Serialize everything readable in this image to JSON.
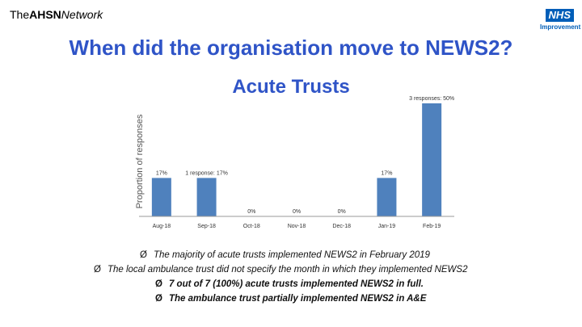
{
  "header": {
    "logo_left_prefix": "The",
    "logo_left_bold": "AHSN",
    "logo_left_italic": "Network",
    "nhs_logo": "NHS",
    "nhs_sub": "Improvement"
  },
  "title": "When did the organisation move to NEWS2?",
  "subtitle": "Acute Trusts",
  "chart_data": {
    "type": "bar",
    "ylabel": "Proportion of responses",
    "categories": [
      "Aug-18",
      "Sep-18",
      "Oct-18",
      "Nov-18",
      "Dec-18",
      "Jan-19",
      "Feb-19"
    ],
    "values": [
      17,
      17,
      0,
      0,
      0,
      17,
      50
    ],
    "data_labels": [
      "17%",
      "1 response: 17%",
      "0%",
      "0%",
      "0%",
      "17%",
      "3 responses: 50%"
    ],
    "ylim": [
      0,
      50
    ],
    "color": "#4F81BD"
  },
  "bullets": [
    {
      "arrow": "Ø",
      "text": "The majority of acute trusts implemented NEWS2 in February 2019"
    },
    {
      "arrow": "Ø",
      "text": "The local ambulance trust did not specify the month in which they implemented NEWS2"
    },
    {
      "arrow": "Ø",
      "text": "7 out of 7 (100%) acute trusts implemented NEWS2 in full."
    },
    {
      "arrow": "Ø",
      "text": "The ambulance trust partially implemented NEWS2 in A&E"
    }
  ]
}
